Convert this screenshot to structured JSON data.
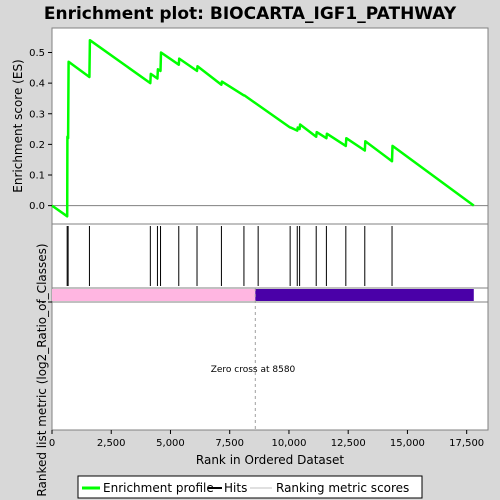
{
  "chart_data": {
    "type": "line",
    "title": "Enrichment plot: BIOCARTA_IGF1_PATHWAY",
    "top_panel": {
      "ylabel": "Enrichment score (ES)",
      "ylim": [
        -0.06,
        0.58
      ],
      "yticks": [
        0.0,
        0.1,
        0.2,
        0.3,
        0.4,
        0.5
      ],
      "ytick_labels": [
        "0.0",
        "0.1",
        "0.2",
        "0.3",
        "0.4",
        "0.5"
      ],
      "series": [
        {
          "name": "Enrichment profile",
          "color": "#00ff00",
          "x": [
            0,
            640,
            650,
            680,
            700,
            1580,
            1600,
            4150,
            4170,
            4450,
            4470,
            4580,
            4600,
            5350,
            5370,
            6120,
            6140,
            7150,
            7170,
            8100,
            8120,
            10050,
            10070,
            10350,
            10370,
            10450,
            10470,
            11150,
            11170,
            11580,
            11600,
            12400,
            12420,
            13200,
            13220,
            14350,
            14370,
            17800
          ],
          "y": [
            0.0,
            -0.035,
            0.225,
            0.22,
            0.47,
            0.42,
            0.54,
            0.4,
            0.43,
            0.415,
            0.445,
            0.44,
            0.5,
            0.46,
            0.48,
            0.44,
            0.455,
            0.395,
            0.405,
            0.36,
            0.36,
            0.255,
            0.255,
            0.245,
            0.255,
            0.25,
            0.265,
            0.225,
            0.24,
            0.22,
            0.235,
            0.195,
            0.22,
            0.18,
            0.21,
            0.145,
            0.195,
            0.0
          ]
        }
      ]
    },
    "hits": [
      640,
      680,
      1580,
      4150,
      4450,
      4580,
      5350,
      6120,
      7150,
      8100,
      8700,
      10050,
      10350,
      10450,
      11150,
      11580,
      12400,
      13200,
      14350
    ],
    "bottom_panel": {
      "ylabel": "Ranked list metric (log2_Ratio_of_Classes)",
      "xlabel": "Rank in Ordered Dataset",
      "xlim": [
        0,
        18400
      ],
      "xticks": [
        0,
        2500,
        5000,
        7500,
        10000,
        12500,
        15000,
        17500
      ],
      "xtick_labels": [
        "0",
        "2,500",
        "5,000",
        "7,500",
        "10,000",
        "12,500",
        "15,000",
        "17,500"
      ],
      "ytick_labels": [
        "-"
      ],
      "zero_cross": 8580,
      "zero_cross_label": "Zero cross at 8580",
      "max_rank": 17800,
      "positive_color": "#ffb6e1",
      "negative_color": "#4a00a8"
    },
    "legend": {
      "placement": "bottom",
      "items": [
        {
          "label": "Enrichment profile",
          "color": "#00ff00"
        },
        {
          "label": "Hits",
          "color": "#000000"
        },
        {
          "label": "Ranking metric scores",
          "color": "#c0c0c0"
        }
      ]
    }
  }
}
